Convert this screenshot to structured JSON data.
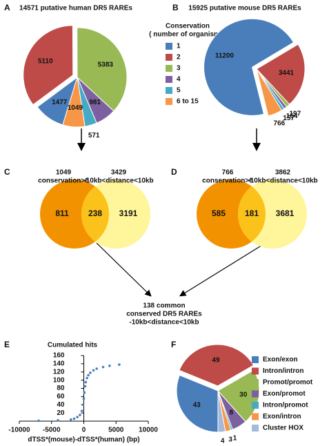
{
  "chart_data": [
    {
      "type": "pie",
      "label": "A",
      "title": "14571 putative human DR5 RAREs",
      "legend_title": [
        "Conservation",
        "( number of organisms)"
      ],
      "categories": [
        "1",
        "2",
        "3",
        "4",
        "5",
        "6 to 15"
      ],
      "values": [
        1477,
        5110,
        5383,
        981,
        571,
        1049
      ],
      "colors": [
        "#4a7ebb",
        "#be4b48",
        "#98b954",
        "#7d60a0",
        "#46aac5",
        "#f79646"
      ]
    },
    {
      "type": "pie",
      "label": "B",
      "title": "15925 putative mouse DR5 RAREs",
      "categories": [
        "1",
        "2",
        "3",
        "4",
        "5",
        "6 to 15"
      ],
      "values": [
        11200,
        3441,
        197,
        164,
        157,
        766
      ],
      "colors": [
        "#4a7ebb",
        "#be4b48",
        "#98b954",
        "#7d60a0",
        "#46aac5",
        "#f79646"
      ]
    },
    {
      "type": "venn",
      "label": "C",
      "sets": [
        {
          "count": 1049,
          "name": "conservation>6",
          "color": "#f39200"
        },
        {
          "count": 3429,
          "name": "-10kb<distance<10kb",
          "color": "#fff59a"
        }
      ],
      "regions": [
        811,
        238,
        3191
      ],
      "overlap_color": "#fbc21b"
    },
    {
      "type": "venn",
      "label": "D",
      "sets": [
        {
          "count": 766,
          "name": "conservation>6",
          "color": "#f39200"
        },
        {
          "count": 3862,
          "name": "-10kb<distance<10kb",
          "color": "#fff59a"
        }
      ],
      "regions": [
        585,
        181,
        3681
      ],
      "overlap_color": "#fbc21b",
      "note": [
        "138 common",
        "conserved DR5 RAREs",
        "-10kb<distance<10kb"
      ]
    },
    {
      "type": "scatter",
      "label": "E",
      "title": "Cumulated hits",
      "xlabel": "dTSS*(mouse)-dTSS*(human) (bp)",
      "x": [
        -7000,
        -4000,
        -2000,
        -1500,
        -1000,
        -600,
        -300,
        -100,
        0,
        100,
        200,
        300,
        500,
        700,
        1000,
        1500,
        2000,
        3000,
        4000,
        5500
      ],
      "y": [
        1,
        2,
        4,
        6,
        10,
        15,
        25,
        40,
        55,
        70,
        85,
        95,
        105,
        112,
        118,
        124,
        128,
        132,
        135,
        138
      ],
      "color": "#4a7ebb",
      "xlim": [
        -10000,
        10000
      ],
      "xticks": [
        -10000,
        -5000,
        0,
        5000,
        10000
      ],
      "ylim": [
        0,
        160
      ],
      "yticks": [
        20,
        40,
        60,
        80,
        100,
        120,
        140,
        160
      ]
    },
    {
      "type": "pie",
      "label": "F",
      "categories": [
        "Exon/exon",
        "Intron/intron",
        "Promot/promot",
        "Exon/promot",
        "Intron/promot",
        "Exon/intron",
        "Cluster HOX"
      ],
      "values": [
        43,
        49,
        30,
        8,
        1,
        3,
        4
      ],
      "colors": [
        "#4a7ebb",
        "#be4b48",
        "#98b954",
        "#7d60a0",
        "#46aac5",
        "#f79646",
        "#a5b9d9"
      ]
    }
  ]
}
